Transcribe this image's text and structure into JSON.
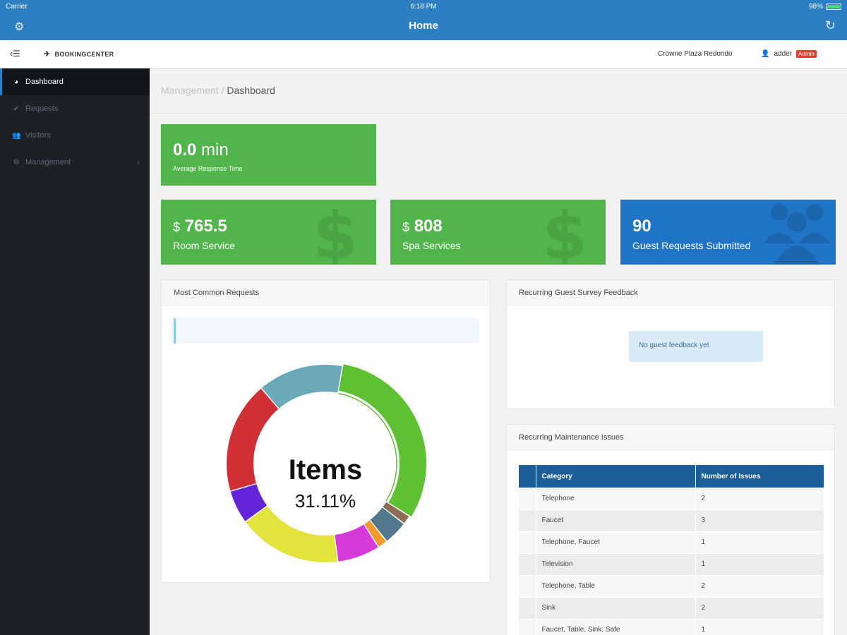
{
  "status_bar": {
    "carrier": "Carrier",
    "time": "6:18 PM",
    "battery": "98%"
  },
  "nav": {
    "title": "Home",
    "left_icon": "gear-icon",
    "right_icon": "refresh-icon"
  },
  "header": {
    "brand": "BOOKINGCENTER",
    "hotel": "Crowne Plaza Redondo",
    "user": "adder",
    "role_badge": "Admin"
  },
  "sidebar": {
    "items": [
      {
        "label": "Dashboard",
        "icon": "dashboard-icon",
        "active": true
      },
      {
        "label": "Requests",
        "icon": "check-icon"
      },
      {
        "label": "Visitors",
        "icon": "users-icon"
      },
      {
        "label": "Management",
        "icon": "gear-icon",
        "has_children": true
      }
    ]
  },
  "breadcrumb": {
    "parent": "Management",
    "separator": " / ",
    "current": "Dashboard"
  },
  "stats": {
    "response_time": {
      "value": "0.0",
      "unit": "min",
      "label": "Average Response Time"
    },
    "room_service": {
      "currency": "$",
      "value": "765.5",
      "label": "Room Service"
    },
    "spa_services": {
      "currency": "$",
      "value": "808",
      "label": "Spa Services"
    },
    "guest_requests": {
      "value": "90",
      "label": "Guest Requests Submitted"
    }
  },
  "common_requests": {
    "title": "Most Common Requests",
    "center_label": "Items",
    "center_value": "31.11%"
  },
  "survey_feedback": {
    "title": "Recurring Guest Survey Feedback",
    "empty_message": "No guest feedback yet"
  },
  "maintenance": {
    "title": "Recurring Maintenance Issues",
    "columns": [
      "Category",
      "Number of Issues"
    ],
    "rows": [
      [
        "Telephone",
        "2"
      ],
      [
        "Faucet",
        "3"
      ],
      [
        "Telephone, Faucet",
        "1"
      ],
      [
        "Television",
        "1"
      ],
      [
        "Telephone, Table",
        "2"
      ],
      [
        "Sink",
        "2"
      ],
      [
        "Faucet, Table, Sink, Safe",
        "1"
      ]
    ]
  },
  "chart_data": {
    "type": "pie",
    "donut": true,
    "title": "",
    "center_label": "Items",
    "center_value": "31.11%",
    "slices": [
      {
        "color": "#5ec033",
        "value": 31.11,
        "highlighted": true
      },
      {
        "color": "#8d6e54",
        "value": 1.5
      },
      {
        "color": "#53788e",
        "value": 4
      },
      {
        "color": "#f29a2e",
        "value": 1.6
      },
      {
        "color": "#d63ad9",
        "value": 7
      },
      {
        "color": "#e3e33d",
        "value": 17
      },
      {
        "color": "#6224d6",
        "value": 5.5
      },
      {
        "color": "#d02f34",
        "value": 18.3
      },
      {
        "color": "#6aaab8",
        "value": 13.99
      }
    ]
  },
  "colors": {
    "nav_blue": "#2d7fc3",
    "tile_green": "#52b54b",
    "tile_blue": "#1f74c6",
    "sidebar_bg": "#1c2126",
    "table_header": "#1c5d9a",
    "badge_red": "#e03c31"
  }
}
